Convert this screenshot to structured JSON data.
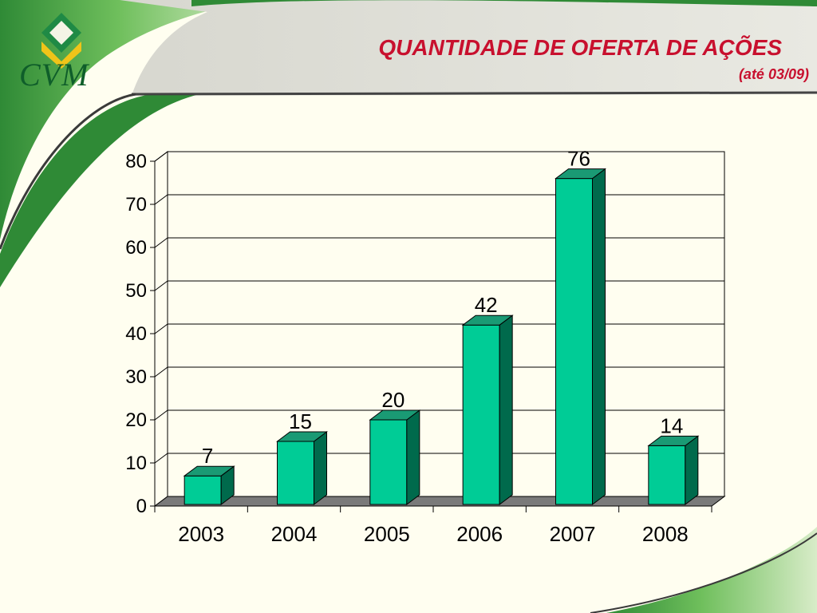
{
  "slide": {
    "title": "QUANTIDADE DE OFERTA DE AÇÕES",
    "subtitle": "(até 03/09)",
    "logo_text": "CVM"
  },
  "colors": {
    "title": "#c8102e",
    "bar_front": "#00cc96",
    "bar_side": "#006a4c",
    "bar_top": "#1a9a74",
    "floor": "#7a7a7a",
    "plot_bg": "#fffef0",
    "green": "#3a8f3e"
  },
  "chart_data": {
    "type": "bar",
    "categories": [
      "2003",
      "2004",
      "2005",
      "2006",
      "2007",
      "2008"
    ],
    "values": [
      7,
      15,
      20,
      42,
      76,
      14
    ],
    "data_labels": [
      "7",
      "15",
      "20",
      "42",
      "76",
      "14"
    ],
    "title": "",
    "xlabel": "",
    "ylabel": "",
    "ylim": [
      0,
      80
    ],
    "yticks": [
      "0",
      "10",
      "20",
      "30",
      "40",
      "50",
      "60",
      "70",
      "80"
    ],
    "grid": true,
    "legend": "none",
    "style": "3d-column"
  }
}
